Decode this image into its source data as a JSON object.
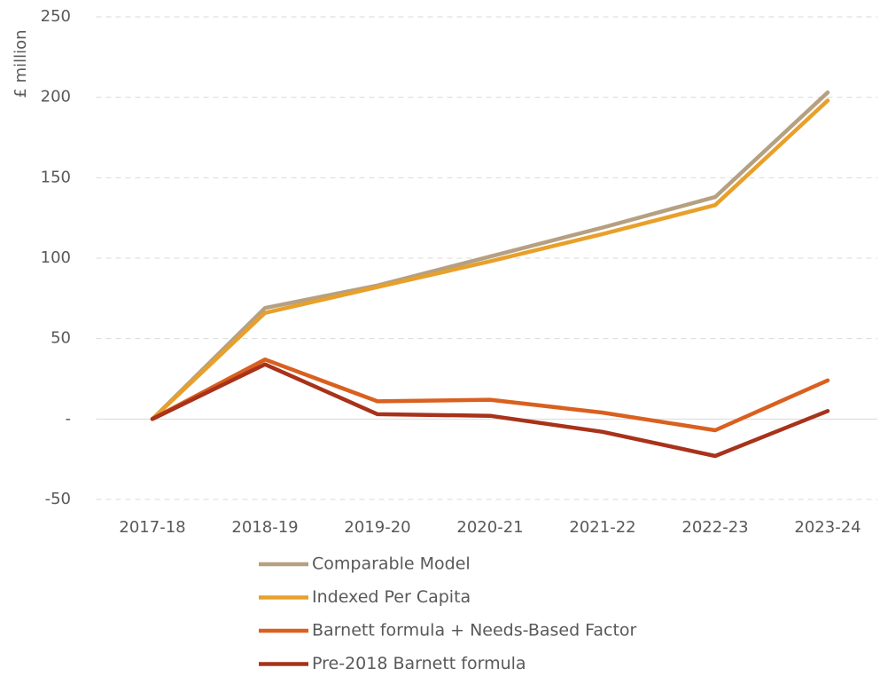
{
  "chart_data": {
    "type": "line",
    "y_label": "£ million",
    "categories": [
      "2017-18",
      "2018-19",
      "2019-20",
      "2020-21",
      "2021-22",
      "2022-23",
      "2023-24"
    ],
    "series": [
      {
        "name": "Comparable Model",
        "color": "#b5a082",
        "values": [
          0,
          69,
          83,
          101,
          119,
          138,
          203
        ]
      },
      {
        "name": "Indexed Per Capita",
        "color": "#e8a02a",
        "values": [
          0,
          66,
          82,
          98,
          115,
          133,
          198
        ]
      },
      {
        "name": "Barnett formula + Needs-Based Factor",
        "color": "#d9601f",
        "values": [
          0,
          37,
          11,
          12,
          4,
          -7,
          24
        ]
      },
      {
        "name": "Pre-2018 Barnett formula",
        "color": "#a8321a",
        "values": [
          0,
          34,
          3,
          2,
          -8,
          -23,
          5
        ]
      }
    ],
    "ylim": [
      -50,
      250
    ],
    "yticks": [
      -50,
      {
        "value": 0,
        "label": "-"
      },
      50,
      100,
      150,
      200,
      250
    ],
    "grid": true,
    "legend": "bottom"
  }
}
